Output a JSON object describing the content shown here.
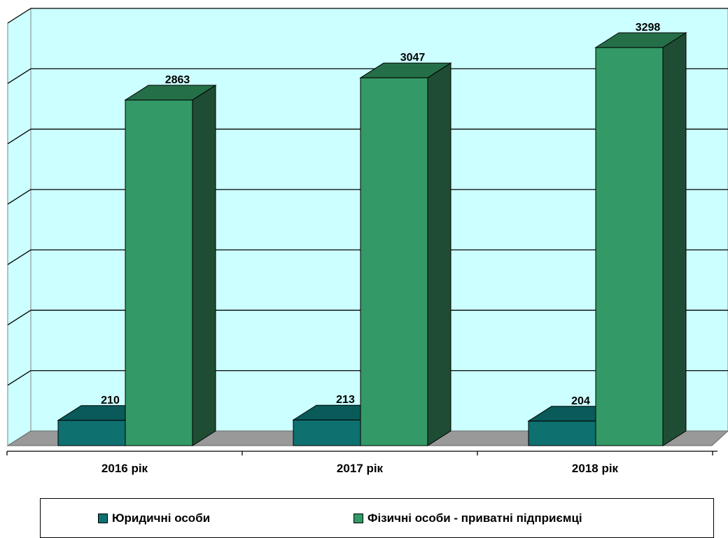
{
  "chart_data": {
    "type": "bar",
    "categories": [
      "2016 рік",
      "2017 рік",
      "2018 рік"
    ],
    "series": [
      {
        "name": "Юридичні особи",
        "values": [
          210,
          213,
          204
        ],
        "color": "#0f7070",
        "top_color": "#0a5a5a",
        "side_color": "#064545"
      },
      {
        "name": "Фізичні особи - приватні підприємці",
        "values": [
          2863,
          3047,
          3298
        ],
        "color": "#339966",
        "top_color": "#256f48",
        "side_color": "#1e4d34"
      }
    ],
    "ylim": [
      0,
      3500
    ],
    "grid": true,
    "legend_position": "bottom",
    "plot_background": "#ccffff",
    "floor_color": "#999999"
  }
}
